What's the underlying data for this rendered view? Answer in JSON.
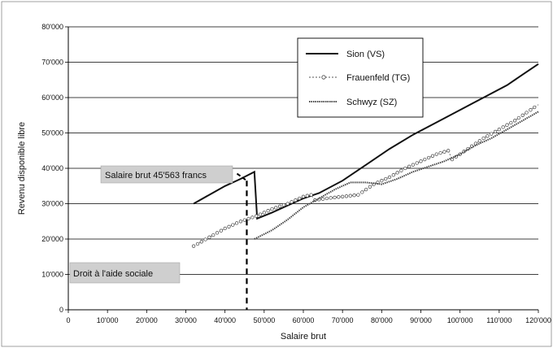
{
  "chart_data": {
    "type": "line",
    "xlabel": "Salaire brut",
    "ylabel": "Revenu disponible libre",
    "xlim": [
      0,
      120000
    ],
    "ylim": [
      0,
      80000
    ],
    "x_ticks": [
      "0",
      "10'000",
      "20'000",
      "30'000",
      "40'000",
      "50'000",
      "60'000",
      "70'000",
      "80'000",
      "90'000",
      "100'000",
      "110'000",
      "120'000"
    ],
    "y_ticks": [
      "0",
      "10'000",
      "20'000",
      "30'000",
      "40'000",
      "50'000",
      "60'000",
      "70'000",
      "80'000"
    ],
    "grid": true,
    "legend_position": "top",
    "series": [
      {
        "name": "Sion (VS)",
        "style": "solid",
        "color": "#111111",
        "x": [
          32000,
          36000,
          40000,
          44000,
          47500,
          48200,
          52000,
          56000,
          60000,
          64000,
          70000,
          76000,
          82000,
          88000,
          94000,
          100000,
          106000,
          112000,
          116000,
          120000
        ],
        "y": [
          30000,
          32500,
          35000,
          37000,
          39000,
          25800,
          27500,
          29500,
          31500,
          33000,
          36500,
          41000,
          45500,
          49500,
          53000,
          56500,
          60000,
          63500,
          66500,
          69500
        ]
      },
      {
        "name": "Frauenfeld (TG)",
        "style": "dotted-circles",
        "color": "#555555",
        "x": [
          32000,
          36000,
          40000,
          44000,
          48000,
          52000,
          56000,
          60000,
          62000,
          63000,
          66000,
          70000,
          74000,
          78000,
          82000,
          86000,
          90000,
          94000,
          97000,
          98000,
          102000,
          106000,
          110000,
          114000,
          118000,
          120000
        ],
        "y": [
          18000,
          20500,
          23000,
          25000,
          26500,
          28500,
          30000,
          32000,
          32500,
          31000,
          31500,
          32000,
          32500,
          35500,
          37500,
          40000,
          42000,
          44000,
          45000,
          42500,
          45500,
          48500,
          51000,
          53500,
          56500,
          58000
        ]
      },
      {
        "name": "Schwyz (SZ)",
        "style": "dashed",
        "color": "#444444",
        "x": [
          47500,
          52000,
          56000,
          60000,
          64000,
          68000,
          72000,
          76000,
          80000,
          84000,
          88000,
          92000,
          96000,
          100000,
          104000,
          108000,
          112000,
          116000,
          120000
        ],
        "y": [
          20000,
          22500,
          25500,
          29000,
          31500,
          34000,
          36000,
          36000,
          35500,
          37000,
          39000,
          40500,
          42000,
          44000,
          46500,
          48500,
          51000,
          53500,
          56000
        ]
      }
    ],
    "annotations": [
      {
        "text": "Salaire brut 45'563 francs",
        "x": 45563
      },
      {
        "text": "Droit à l'aide sociale"
      }
    ]
  }
}
